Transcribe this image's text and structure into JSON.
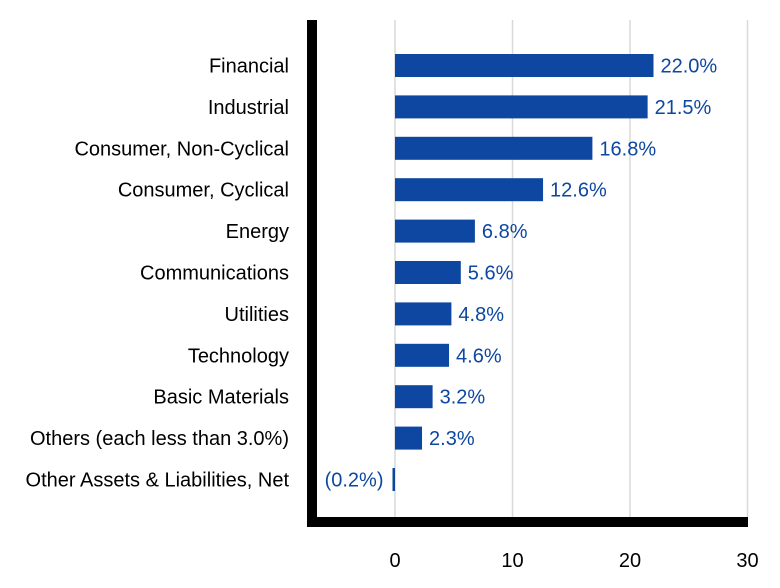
{
  "chart_data": {
    "type": "bar",
    "orientation": "horizontal",
    "categories": [
      "Financial",
      "Industrial",
      "Consumer, Non-Cyclical",
      "Consumer, Cyclical",
      "Energy",
      "Communications",
      "Utilities",
      "Technology",
      "Basic Materials",
      "Others (each less than 3.0%)",
      "Other Assets & Liabilities, Net"
    ],
    "values": [
      22.0,
      21.5,
      16.8,
      12.6,
      6.8,
      5.6,
      4.8,
      4.6,
      3.2,
      2.3,
      -0.2
    ],
    "data_labels": [
      "22.0%",
      "21.5%",
      "16.8%",
      "12.6%",
      "6.8%",
      "5.6%",
      "4.8%",
      "4.6%",
      "3.2%",
      "2.3%",
      "(0.2%)"
    ],
    "x_ticks": [
      "0",
      "10",
      "20",
      "30"
    ],
    "xlim": [
      0,
      30
    ],
    "grid": true,
    "legend": "none",
    "colors": {
      "bar": "#0d47a1",
      "label": "#0d47a1",
      "grid": "#d9d9d9",
      "axis": "#000000"
    }
  }
}
